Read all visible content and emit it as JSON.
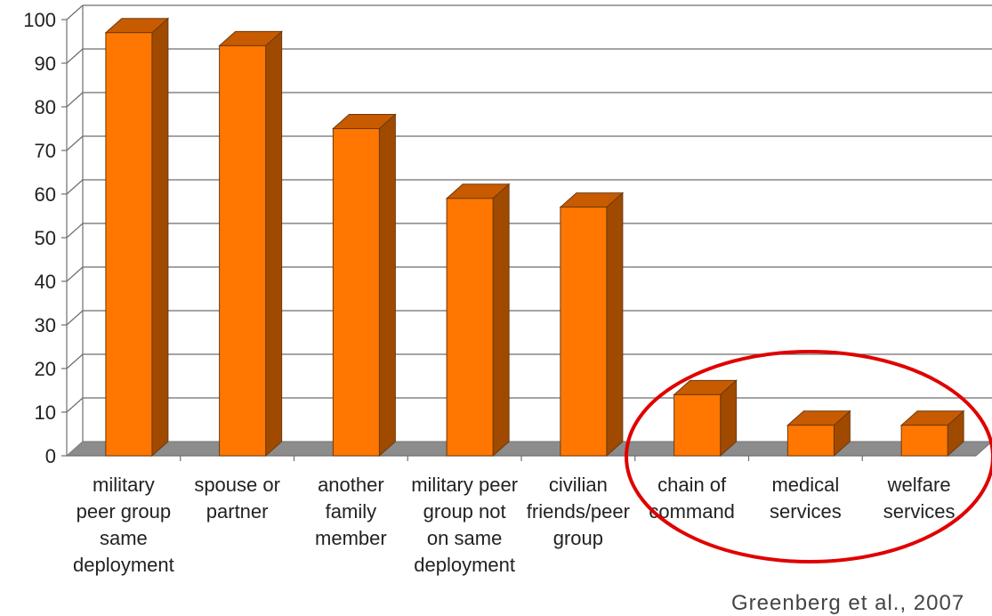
{
  "chart_data": {
    "type": "bar",
    "style": "3d-column",
    "categories": [
      [
        "military",
        "peer group",
        "same",
        "deployment"
      ],
      [
        "spouse or",
        "partner"
      ],
      [
        "another",
        "family",
        "member"
      ],
      [
        "military peer",
        "group not",
        "on same",
        "deployment"
      ],
      [
        "civilian",
        "friends/peer",
        "group"
      ],
      [
        "chain of",
        "command"
      ],
      [
        "medical",
        "services"
      ],
      [
        "welfare",
        "services"
      ]
    ],
    "values": [
      97,
      94,
      75,
      59,
      57,
      14,
      7,
      7
    ],
    "ylim": [
      0,
      100
    ],
    "yticks": [
      0,
      10,
      20,
      30,
      40,
      50,
      60,
      70,
      80,
      90,
      100
    ],
    "grid": true,
    "legend": "none",
    "annotation": "red ellipse highlighting chain of command, medical services, welfare services",
    "colors": {
      "bar_front": "#FF7700",
      "bar_side": "#A04A00",
      "bar_top": "#C85A00",
      "floor": "#8C8C8C",
      "grid": "#6E6E6E",
      "highlight": "#E00000"
    }
  },
  "citation": "Greenberg et al., 2007"
}
